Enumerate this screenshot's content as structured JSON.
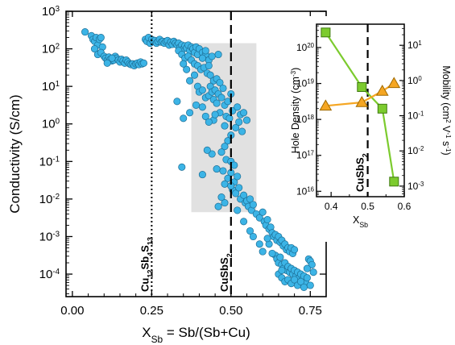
{
  "chart_data": [
    {
      "id": "main",
      "type": "scatter",
      "xlabel_main": "X",
      "xlabel_sub": "Sb",
      "xlabel_rest": " = Sb/(Sb+Cu)",
      "ylabel": "Conductivity (S/cm)",
      "xlim": [
        -0.02,
        0.8
      ],
      "ylim_log10": [
        -4.6,
        3.0
      ],
      "y_log_scale": true,
      "grid": false,
      "x_ticks": [
        "0.00",
        "0.25",
        "0.50",
        "0.75"
      ],
      "x_tick_values": [
        0,
        0.25,
        0.5,
        0.75
      ],
      "y_ticks": [
        "10",
        "10",
        "10",
        "10",
        "10",
        "10",
        "10",
        "10"
      ],
      "y_tick_exponents": [
        "-4",
        "-3",
        "-2",
        "-1",
        "0",
        "1",
        "2",
        "3"
      ],
      "y_tick_values_log10": [
        -4,
        -3,
        -2,
        -1,
        0,
        1,
        2,
        3
      ],
      "marker_color": "#3cb4e6",
      "shaded_region": {
        "x": [
          0.375,
          0.58
        ],
        "y_log10": [
          -2.35,
          2.15
        ],
        "color": "#e1e1e1"
      },
      "vertical_lines": [
        {
          "x": 0.25,
          "style": "dotted",
          "label_parts": [
            "Cu",
            "12",
            "Sb",
            "4",
            "S",
            "13"
          ]
        },
        {
          "x": 0.5,
          "style": "dashed",
          "label_parts": [
            "CuSbS",
            "2"
          ]
        }
      ],
      "points": [
        [
          0.04,
          2.45
        ],
        [
          0.06,
          2.35
        ],
        [
          0.065,
          2.25
        ],
        [
          0.07,
          2.2
        ],
        [
          0.075,
          2.3
        ],
        [
          0.08,
          2.1
        ],
        [
          0.085,
          2.25
        ],
        [
          0.09,
          2.3
        ],
        [
          0.095,
          2.05
        ],
        [
          0.07,
          2.0
        ],
        [
          0.08,
          1.85
        ],
        [
          0.09,
          1.9
        ],
        [
          0.1,
          1.8
        ],
        [
          0.105,
          1.75
        ],
        [
          0.11,
          1.7
        ],
        [
          0.115,
          1.78
        ],
        [
          0.12,
          1.72
        ],
        [
          0.125,
          1.68
        ],
        [
          0.13,
          1.7
        ],
        [
          0.135,
          1.8
        ],
        [
          0.14,
          1.75
        ],
        [
          0.145,
          1.7
        ],
        [
          0.15,
          1.65
        ],
        [
          0.155,
          1.72
        ],
        [
          0.16,
          1.68
        ],
        [
          0.165,
          1.62
        ],
        [
          0.17,
          1.7
        ],
        [
          0.175,
          1.65
        ],
        [
          0.18,
          1.6
        ],
        [
          0.185,
          1.58
        ],
        [
          0.19,
          1.6
        ],
        [
          0.195,
          1.55
        ],
        [
          0.2,
          1.6
        ],
        [
          0.205,
          1.62
        ],
        [
          0.21,
          1.58
        ],
        [
          0.215,
          1.65
        ],
        [
          0.22,
          1.6
        ],
        [
          0.225,
          1.62
        ],
        [
          0.11,
          1.62
        ],
        [
          0.125,
          1.75
        ],
        [
          0.23,
          2.25
        ],
        [
          0.235,
          2.2
        ],
        [
          0.24,
          2.3
        ],
        [
          0.245,
          2.15
        ],
        [
          0.25,
          2.25
        ],
        [
          0.255,
          2.2
        ],
        [
          0.26,
          2.22
        ],
        [
          0.265,
          2.15
        ],
        [
          0.27,
          2.2
        ],
        [
          0.275,
          2.25
        ],
        [
          0.28,
          2.18
        ],
        [
          0.285,
          2.2
        ],
        [
          0.29,
          2.15
        ],
        [
          0.295,
          2.2
        ],
        [
          0.3,
          2.22
        ],
        [
          0.305,
          2.1
        ],
        [
          0.31,
          2.18
        ],
        [
          0.315,
          2.12
        ],
        [
          0.32,
          2.2
        ],
        [
          0.325,
          2.15
        ],
        [
          0.33,
          2.1
        ],
        [
          0.335,
          2.15
        ],
        [
          0.34,
          2.05
        ],
        [
          0.345,
          2.1
        ],
        [
          0.35,
          2.0
        ],
        [
          0.355,
          2.08
        ],
        [
          0.36,
          2.02
        ],
        [
          0.365,
          2.1
        ],
        [
          0.37,
          1.95
        ],
        [
          0.375,
          2.05
        ],
        [
          0.38,
          2.0
        ],
        [
          0.385,
          1.9
        ],
        [
          0.39,
          2.05
        ],
        [
          0.395,
          1.85
        ],
        [
          0.4,
          2.0
        ],
        [
          0.41,
          1.9
        ],
        [
          0.42,
          1.85
        ],
        [
          0.43,
          1.7
        ],
        [
          0.44,
          1.8
        ],
        [
          0.335,
          1.95
        ],
        [
          0.345,
          1.85
        ],
        [
          0.355,
          1.75
        ],
        [
          0.365,
          1.8
        ],
        [
          0.375,
          1.7
        ],
        [
          0.385,
          1.6
        ],
        [
          0.395,
          1.55
        ],
        [
          0.405,
          1.45
        ],
        [
          0.415,
          1.5
        ],
        [
          0.425,
          1.35
        ],
        [
          0.435,
          1.3
        ],
        [
          0.445,
          1.15
        ],
        [
          0.455,
          1.2
        ],
        [
          0.465,
          1.1
        ],
        [
          0.36,
          1.45
        ],
        [
          0.37,
          1.15
        ],
        [
          0.42,
          1.95
        ],
        [
          0.41,
          1.75
        ],
        [
          0.43,
          1.55
        ],
        [
          0.46,
          1.85
        ],
        [
          0.35,
          1.6
        ],
        [
          0.385,
          1.3
        ],
        [
          0.395,
          1.0
        ],
        [
          0.4,
          0.85
        ],
        [
          0.41,
          0.9
        ],
        [
          0.42,
          0.7
        ],
        [
          0.43,
          0.75
        ],
        [
          0.435,
          1.0
        ],
        [
          0.44,
          0.85
        ],
        [
          0.445,
          0.65
        ],
        [
          0.45,
          0.9
        ],
        [
          0.455,
          0.55
        ],
        [
          0.46,
          0.8
        ],
        [
          0.47,
          0.7
        ],
        [
          0.475,
          0.95
        ],
        [
          0.48,
          0.5
        ],
        [
          0.49,
          0.6
        ],
        [
          0.5,
          0.8
        ],
        [
          0.505,
          0.35
        ],
        [
          0.52,
          0.45
        ],
        [
          0.53,
          0.25
        ],
        [
          0.54,
          0.3
        ],
        [
          0.55,
          0.1
        ],
        [
          0.33,
          0.6
        ],
        [
          0.35,
          0.15
        ],
        [
          0.37,
          0.3
        ],
        [
          0.39,
          0.5
        ],
        [
          0.42,
          0.2
        ],
        [
          0.445,
          0.1
        ],
        [
          0.465,
          0.3
        ],
        [
          0.485,
          0.2
        ],
        [
          0.41,
          0.45
        ],
        [
          0.43,
          0.05
        ],
        [
          0.45,
          0.25
        ],
        [
          0.48,
          -0.05
        ],
        [
          0.495,
          0.15
        ],
        [
          0.515,
          -0.1
        ],
        [
          0.525,
          0.05
        ],
        [
          0.535,
          -0.2
        ],
        [
          0.5,
          -0.3
        ],
        [
          0.49,
          -0.45
        ],
        [
          0.48,
          -0.6
        ],
        [
          0.47,
          -0.75
        ],
        [
          0.485,
          -0.95
        ],
        [
          0.5,
          -1.0
        ],
        [
          0.51,
          -1.1
        ],
        [
          0.455,
          -1.2
        ],
        [
          0.44,
          -0.8
        ],
        [
          0.425,
          -0.7
        ],
        [
          0.345,
          -1.15
        ],
        [
          0.41,
          -1.35
        ],
        [
          0.475,
          -1.25
        ],
        [
          0.5,
          -1.3
        ],
        [
          0.49,
          -1.45
        ],
        [
          0.51,
          -1.55
        ],
        [
          0.52,
          -1.4
        ],
        [
          0.48,
          -1.6
        ],
        [
          0.505,
          -1.75
        ],
        [
          0.515,
          -1.85
        ],
        [
          0.525,
          -1.7
        ],
        [
          0.53,
          -2.0
        ],
        [
          0.54,
          -1.9
        ],
        [
          0.545,
          -2.1
        ],
        [
          0.55,
          -2.05
        ],
        [
          0.555,
          -2.2
        ],
        [
          0.56,
          -2.0
        ],
        [
          0.565,
          -2.3
        ],
        [
          0.57,
          -2.15
        ],
        [
          0.58,
          -2.4
        ],
        [
          0.59,
          -2.5
        ],
        [
          0.6,
          -2.35
        ],
        [
          0.605,
          -2.6
        ],
        [
          0.61,
          -2.7
        ],
        [
          0.615,
          -2.55
        ],
        [
          0.62,
          -2.8
        ],
        [
          0.625,
          -2.75
        ],
        [
          0.63,
          -2.9
        ],
        [
          0.635,
          -3.0
        ],
        [
          0.64,
          -2.95
        ],
        [
          0.645,
          -3.1
        ],
        [
          0.65,
          -3.0
        ],
        [
          0.655,
          -3.15
        ],
        [
          0.66,
          -3.1
        ],
        [
          0.665,
          -3.25
        ],
        [
          0.67,
          -3.2
        ],
        [
          0.675,
          -3.35
        ],
        [
          0.68,
          -3.3
        ],
        [
          0.685,
          -3.4
        ],
        [
          0.69,
          -3.3
        ],
        [
          0.695,
          -3.45
        ],
        [
          0.7,
          -3.35
        ],
        [
          0.54,
          -2.6
        ],
        [
          0.56,
          -2.85
        ],
        [
          0.57,
          -3.0
        ],
        [
          0.6,
          -3.4
        ],
        [
          0.59,
          -3.2
        ],
        [
          0.48,
          -2.1
        ],
        [
          0.46,
          -2.2
        ],
        [
          0.47,
          -1.95
        ],
        [
          0.5,
          -1.65
        ],
        [
          0.52,
          -2.3
        ],
        [
          0.64,
          -3.5
        ],
        [
          0.645,
          -3.6
        ],
        [
          0.65,
          -3.7
        ],
        [
          0.655,
          -3.55
        ],
        [
          0.66,
          -3.75
        ],
        [
          0.665,
          -3.85
        ],
        [
          0.67,
          -3.7
        ],
        [
          0.675,
          -3.9
        ],
        [
          0.68,
          -3.8
        ],
        [
          0.685,
          -3.95
        ],
        [
          0.69,
          -3.85
        ],
        [
          0.695,
          -4.0
        ],
        [
          0.7,
          -3.9
        ],
        [
          0.705,
          -4.05
        ],
        [
          0.71,
          -3.95
        ],
        [
          0.715,
          -4.1
        ],
        [
          0.72,
          -4.0
        ],
        [
          0.725,
          -4.15
        ],
        [
          0.73,
          -4.05
        ],
        [
          0.735,
          -4.2
        ],
        [
          0.74,
          -4.1
        ],
        [
          0.745,
          -3.6
        ],
        [
          0.75,
          -3.65
        ],
        [
          0.755,
          -3.75
        ],
        [
          0.65,
          -4.0
        ],
        [
          0.66,
          -4.1
        ],
        [
          0.67,
          -4.2
        ],
        [
          0.68,
          -4.15
        ],
        [
          0.69,
          -4.25
        ],
        [
          0.7,
          -4.15
        ],
        [
          0.71,
          -4.3
        ],
        [
          0.72,
          -4.2
        ],
        [
          0.73,
          -4.35
        ],
        [
          0.62,
          -3.2
        ],
        [
          0.63,
          -3.45
        ],
        [
          0.615,
          -3.05
        ],
        [
          0.74,
          -3.85
        ],
        [
          0.75,
          -4.3
        ],
        [
          0.76,
          -3.95
        ],
        [
          0.66,
          -3.9
        ]
      ]
    },
    {
      "id": "inset",
      "type": "line",
      "xlabel_main": "X",
      "xlabel_sub": "Sb",
      "ylabel_left_parts": [
        "Hole Density (cm",
        "-3",
        ")"
      ],
      "ylabel_right_parts": [
        "Mobility (cm",
        "2",
        " V",
        "-1",
        " s",
        "-1",
        ")"
      ],
      "xlim": [
        0.36,
        0.6
      ],
      "x_ticks": [
        "0.4",
        "0.5",
        "0.6"
      ],
      "x_tick_values": [
        0.4,
        0.5,
        0.6
      ],
      "y_left_log10": [
        15.85,
        20.65
      ],
      "y_left_ticks": [
        "10",
        "10",
        "10",
        "10",
        "10"
      ],
      "y_left_tick_exponents": [
        "16",
        "17",
        "18",
        "19",
        "20"
      ],
      "y_left_tick_values_log10": [
        16,
        17,
        18,
        19,
        20
      ],
      "y_right_log10": [
        -3.3,
        1.6
      ],
      "y_right_ticks": [
        "10",
        "10",
        "10",
        "10",
        "10"
      ],
      "y_right_tick_exponents": [
        "-3",
        "-2",
        "-1",
        "0",
        "1"
      ],
      "y_right_tick_values_log10": [
        -3,
        -2,
        -1,
        0,
        1
      ],
      "vertical_line": {
        "x": 0.5,
        "style": "dashed",
        "label_parts": [
          "CuSbS",
          "2"
        ]
      },
      "series": [
        {
          "axis": "left",
          "marker": "square",
          "color": "#7ccb2e",
          "edge": "#3f7a10",
          "x": [
            0.385,
            0.484,
            0.54,
            0.572
          ],
          "y_log10": [
            20.42,
            18.9,
            18.3,
            16.27
          ]
        },
        {
          "axis": "right",
          "marker": "triangle",
          "color": "#f5a623",
          "edge": "#a06a00",
          "x": [
            0.385,
            0.484,
            0.54,
            0.572
          ],
          "y_log10": [
            -0.72,
            -0.62,
            -0.3,
            -0.08
          ]
        }
      ]
    }
  ]
}
